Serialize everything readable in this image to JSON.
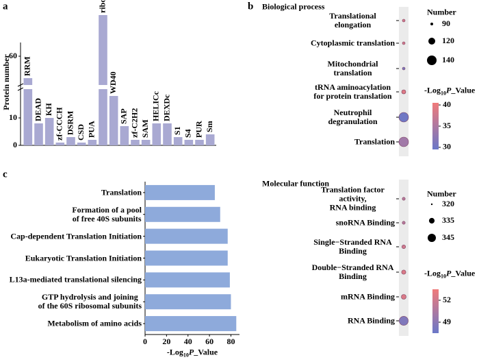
{
  "chart_data": [
    {
      "type": "bar",
      "panel_label": "a",
      "y_label": "Protein number",
      "categories": [
        "RRM",
        "DEAD",
        "KH",
        "zf-CCCH",
        "DSRM",
        "CSD",
        "PUA",
        "ribosomal",
        "WD40",
        "SAP",
        "zf-C2H2",
        "SAM",
        "HELICc",
        "DEXDc",
        "S1",
        "S4",
        "PUR",
        "Sm"
      ],
      "values": [
        52,
        8,
        10,
        1,
        3,
        1,
        2,
        75,
        18,
        7,
        2,
        2,
        8,
        8,
        3,
        2,
        2,
        4
      ],
      "color": "#a9a9d2",
      "ylim": [
        0,
        75
      ],
      "yticks": [
        0,
        10,
        60
      ],
      "ybreak": [
        22,
        48
      ]
    },
    {
      "type": "bubble",
      "panel_label": "b",
      "title": "Biological process",
      "categories": [
        "Translational elongation",
        "Cytoplasmic translation",
        "Mitochondrial translation",
        "tRNA aminoacylation for protein translation",
        "Neutrophil degranulation",
        "Translation"
      ],
      "sizes": [
        90,
        90,
        90,
        100,
        140,
        140
      ],
      "values": [
        38,
        38,
        31,
        39,
        30,
        34
      ],
      "size_legend_title": "Number",
      "size_legend": [
        90,
        120,
        140
      ],
      "colorbar_title": [
        "-Log",
        "10",
        "P",
        "_Value"
      ],
      "clim": [
        29.5,
        40.5
      ],
      "cticks": [
        30,
        35,
        40
      ],
      "cmap": [
        "#6a78c8",
        "#f07a7a"
      ]
    },
    {
      "type": "barh",
      "panel_label": "c",
      "categories": [
        "Translation",
        "Formation of a pool\nof free 40S subunits",
        "Cap-dependent Translation Initiation",
        "Eukaryotic Translation Initiation",
        "L13a-mediated translational silencing",
        "GTP hydrolysis and joining\nof the 60S ribosomal subunits",
        "Metabolism of amino acids"
      ],
      "values": [
        65,
        70,
        77,
        77,
        79,
        80,
        85
      ],
      "color": "#8eaadb",
      "xlim": [
        0,
        88
      ],
      "xticks": [
        0,
        20,
        40,
        60,
        80
      ],
      "x_label": [
        "-Log",
        "10",
        "P",
        "_Value"
      ]
    },
    {
      "type": "bubble",
      "title": "Molecular function",
      "categories": [
        "Translation factor activity,\nRNA binding",
        "snoRNA Binding",
        "Single−Stranded RNA Binding",
        "Double−Stranded RNA Binding",
        "mRNA Binding",
        "RNA Binding"
      ],
      "sizes": [
        325,
        325,
        328,
        330,
        332,
        348
      ],
      "values": [
        51,
        51,
        52,
        52.5,
        52.5,
        48.5
      ],
      "size_legend_title": "Number",
      "size_legend": [
        320,
        335,
        345
      ],
      "colorbar_title": [
        "-Log",
        "10",
        "P",
        "_Value"
      ],
      "clim": [
        47.5,
        53.5
      ],
      "cticks": [
        49,
        52
      ],
      "cmap": [
        "#6a78c8",
        "#f07a7a"
      ]
    }
  ]
}
